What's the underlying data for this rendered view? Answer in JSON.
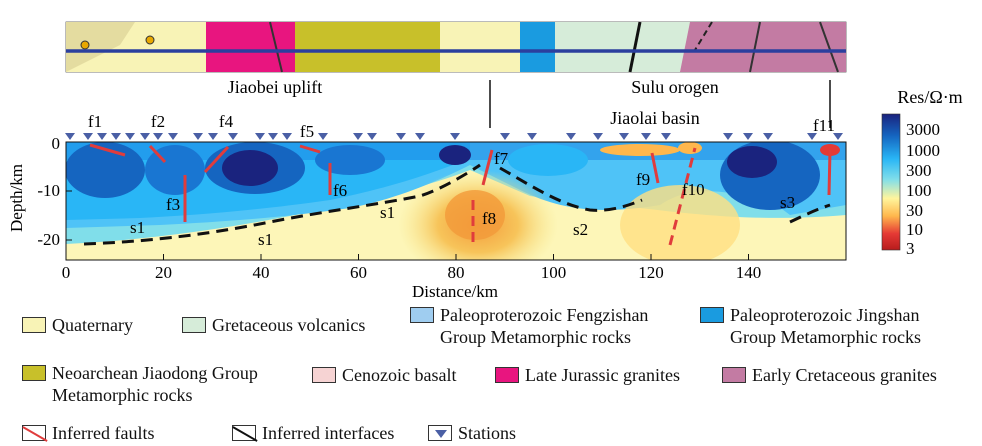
{
  "figure": {
    "regions": {
      "jiaobei": "Jiaobei uplift",
      "sulu": "Sulu orogen",
      "jiaolai": "Jiaolai basin"
    },
    "axes": {
      "ylabel": "Depth/km",
      "xlabel": "Distance/km",
      "yticks": [
        "0",
        "-10",
        "-20"
      ],
      "xticks": [
        "0",
        "20",
        "40",
        "60",
        "80",
        "100",
        "120",
        "140"
      ]
    },
    "colorbar": {
      "title": "Res/Ω·m",
      "ticks": [
        "3000",
        "1000",
        "300",
        "100",
        "30",
        "10",
        "3"
      ],
      "colors": [
        "#1a237e",
        "#1565c0",
        "#29b6f6",
        "#80deea",
        "#fff59d",
        "#ffb74d",
        "#e53935",
        "#b71c1c"
      ]
    },
    "faults": [
      "f1",
      "f2",
      "f3",
      "f4",
      "f5",
      "f6",
      "f7",
      "f8",
      "f9",
      "f10",
      "f11"
    ],
    "interfaces": [
      "s1",
      "s1",
      "s1",
      "s2",
      "s3"
    ],
    "colors": {
      "fault": "#e03c3c",
      "interface": "#111111",
      "station": "#4a5fa5",
      "profile_line": "#2b3f9e"
    }
  },
  "legend": {
    "items": [
      {
        "label": "Quaternary",
        "color": "#f8f3b6"
      },
      {
        "label": "Gretaceous volcanics",
        "color": "#d6ecd9"
      },
      {
        "label": "Paleoproterozoic Fengzishan Group Metamorphic rocks",
        "line1": "Paleoproterozoic Fengzishan",
        "line2": "Group Metamorphic rocks",
        "color": "#9fcdf0"
      },
      {
        "label": "Paleoproterozoic Jingshan Group Metamorphic rocks",
        "line1": "Paleoproterozoic Jingshan",
        "line2": "Group Metamorphic rocks",
        "color": "#1a9be0"
      },
      {
        "label": "Neoarchean Jiaodong Group Metamorphic rocks",
        "line1": "Neoarchean Jiaodong Group",
        "line2": "Metamorphic rocks",
        "color": "#c8c02a"
      },
      {
        "label": "Cenozoic basalt",
        "color": "#f6d3d3"
      },
      {
        "label": "Late Jurassic granites",
        "color": "#e8157f"
      },
      {
        "label": "Early Cretaceous granites",
        "color": "#c37ba3"
      },
      {
        "label": "Inferred faults"
      },
      {
        "label": "Inferred interfaces"
      },
      {
        "label": "Stations"
      }
    ]
  }
}
